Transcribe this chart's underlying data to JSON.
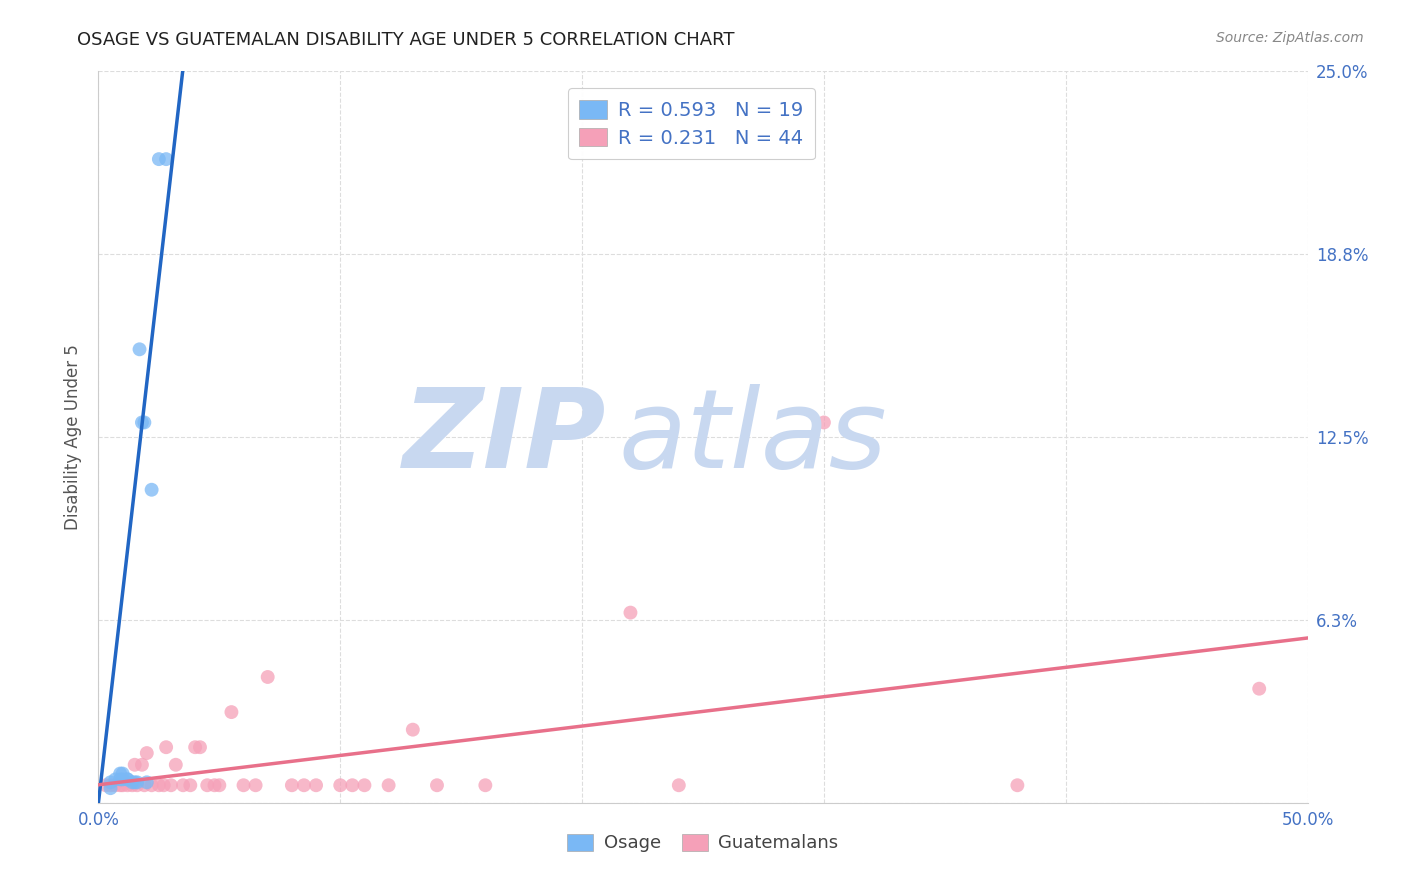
{
  "title": "OSAGE VS GUATEMALAN DISABILITY AGE UNDER 5 CORRELATION CHART",
  "source": "Source: ZipAtlas.com",
  "ylabel": "Disability Age Under 5",
  "xlim": [
    0.0,
    0.5
  ],
  "ylim": [
    0.0,
    0.25
  ],
  "xtick_positions": [
    0.0,
    0.1,
    0.2,
    0.3,
    0.4,
    0.5
  ],
  "xticklabels": [
    "0.0%",
    "",
    "",
    "",
    "",
    "50.0%"
  ],
  "ytick_positions": [
    0.0,
    0.0625,
    0.125,
    0.1875,
    0.25
  ],
  "ytick_labels": [
    "",
    "6.3%",
    "12.5%",
    "18.8%",
    "25.0%"
  ],
  "osage_color": "#7ab8f5",
  "guatemalan_color": "#f5a0b8",
  "osage_line_color": "#2166c4",
  "guatemalan_line_color": "#e8708a",
  "trend_line_dash_color": "#bbbbbb",
  "background_color": "#ffffff",
  "grid_color": "#dddddd",
  "tick_label_color": "#4472c4",
  "title_color": "#222222",
  "source_color": "#888888",
  "ylabel_color": "#555555",
  "osage_R": 0.593,
  "osage_N": 19,
  "guatemalan_R": 0.231,
  "guatemalan_N": 44,
  "osage_x": [
    0.005,
    0.005,
    0.007,
    0.009,
    0.009,
    0.01,
    0.01,
    0.012,
    0.012,
    0.014,
    0.015,
    0.016,
    0.017,
    0.018,
    0.019,
    0.02,
    0.022,
    0.025,
    0.028
  ],
  "osage_y": [
    0.005,
    0.007,
    0.008,
    0.008,
    0.01,
    0.008,
    0.01,
    0.008,
    0.008,
    0.007,
    0.007,
    0.007,
    0.155,
    0.13,
    0.13,
    0.007,
    0.107,
    0.22,
    0.22
  ],
  "guatemalan_x": [
    0.003,
    0.005,
    0.007,
    0.009,
    0.01,
    0.012,
    0.014,
    0.015,
    0.016,
    0.018,
    0.019,
    0.02,
    0.022,
    0.025,
    0.027,
    0.028,
    0.03,
    0.032,
    0.035,
    0.038,
    0.04,
    0.042,
    0.045,
    0.048,
    0.05,
    0.055,
    0.06,
    0.065,
    0.07,
    0.08,
    0.085,
    0.09,
    0.1,
    0.105,
    0.11,
    0.12,
    0.13,
    0.14,
    0.16,
    0.22,
    0.24,
    0.3,
    0.38,
    0.48
  ],
  "guatemalan_y": [
    0.006,
    0.006,
    0.006,
    0.006,
    0.006,
    0.006,
    0.006,
    0.013,
    0.006,
    0.013,
    0.006,
    0.017,
    0.006,
    0.006,
    0.006,
    0.019,
    0.006,
    0.013,
    0.006,
    0.006,
    0.019,
    0.019,
    0.006,
    0.006,
    0.006,
    0.031,
    0.006,
    0.006,
    0.043,
    0.006,
    0.006,
    0.006,
    0.006,
    0.006,
    0.006,
    0.006,
    0.025,
    0.006,
    0.006,
    0.065,
    0.006,
    0.13,
    0.006,
    0.039
  ],
  "marker_size": 100,
  "watermark_zip_color": "#c8d8f0",
  "watermark_atlas_color": "#c8d8f0"
}
